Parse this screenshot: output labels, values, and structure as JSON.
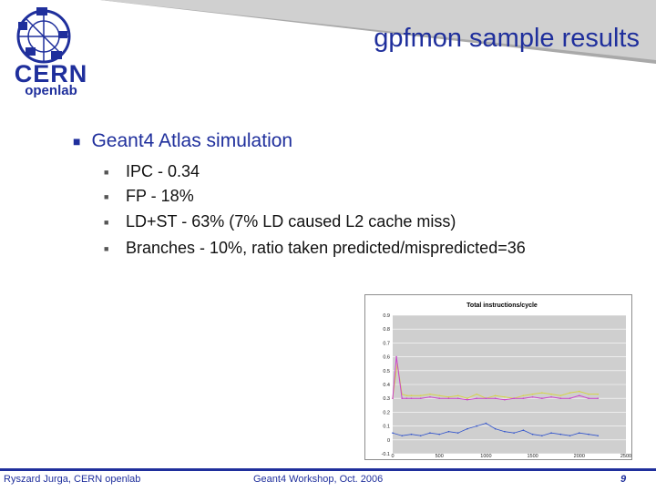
{
  "slide": {
    "title": "gpfmon sample results",
    "logo": {
      "text_main": "CERN",
      "text_sub": "openlab"
    },
    "bullet_main": "Geant4 Atlas simulation",
    "sub_bullets": [
      "IPC - 0.34",
      "FP - 18%",
      "LD+ST - 63% (7% LD caused L2 cache miss)",
      "Branches - 10%, ratio taken predicted/mispredicted=36"
    ],
    "footer": {
      "author": "Ryszard Jurga, CERN openlab",
      "event": "Geant4 Workshop, Oct. 2006",
      "page": "9"
    },
    "colors": {
      "accent": "#1f2f9c",
      "grey_wedge": "#a8a8a8"
    }
  },
  "chart_data": {
    "type": "line",
    "title": "Total instructions/cycle",
    "xlabel": "",
    "ylabel": "",
    "ylim": [
      -0.1,
      0.9
    ],
    "xlim": [
      0,
      2500
    ],
    "y_ticks": [
      "0.9",
      "0.8",
      "0.7",
      "0.6",
      "0.5",
      "0.4",
      "0.3",
      "0.2",
      "0.1",
      "0",
      "-0.1"
    ],
    "x_ticks": [
      "0",
      "500",
      "1000",
      "1500",
      "2000",
      "2500"
    ],
    "grid": true,
    "series": [
      {
        "color": "#d4d44a",
        "x": [
          0,
          50,
          100,
          150,
          200,
          300,
          400,
          500,
          600,
          700,
          800,
          900,
          1000,
          1100,
          1200,
          1300,
          1400,
          1500,
          1600,
          1700,
          1800,
          1900,
          2000,
          2100,
          2200
        ],
        "values": [
          0.3,
          0.55,
          0.33,
          0.32,
          0.32,
          0.32,
          0.33,
          0.32,
          0.31,
          0.32,
          0.3,
          0.33,
          0.3,
          0.32,
          0.31,
          0.3,
          0.32,
          0.33,
          0.34,
          0.33,
          0.32,
          0.34,
          0.35,
          0.33,
          0.33
        ]
      },
      {
        "color": "#cc44cc",
        "x": [
          0,
          40,
          100,
          150,
          200,
          300,
          400,
          500,
          600,
          700,
          800,
          900,
          1000,
          1100,
          1200,
          1300,
          1400,
          1500,
          1600,
          1700,
          1800,
          1900,
          2000,
          2100,
          2200
        ],
        "values": [
          0.3,
          0.6,
          0.3,
          0.3,
          0.3,
          0.3,
          0.31,
          0.3,
          0.3,
          0.3,
          0.29,
          0.3,
          0.3,
          0.3,
          0.29,
          0.3,
          0.3,
          0.31,
          0.3,
          0.31,
          0.3,
          0.3,
          0.32,
          0.3,
          0.3
        ]
      },
      {
        "color": "#3355cc",
        "x": [
          0,
          100,
          200,
          300,
          400,
          500,
          600,
          700,
          800,
          900,
          1000,
          1100,
          1200,
          1300,
          1400,
          1500,
          1600,
          1700,
          1800,
          1900,
          2000,
          2100,
          2200
        ],
        "values": [
          0.05,
          0.03,
          0.04,
          0.03,
          0.05,
          0.04,
          0.06,
          0.05,
          0.08,
          0.1,
          0.12,
          0.08,
          0.06,
          0.05,
          0.07,
          0.04,
          0.03,
          0.05,
          0.04,
          0.03,
          0.05,
          0.04,
          0.03
        ]
      }
    ]
  }
}
